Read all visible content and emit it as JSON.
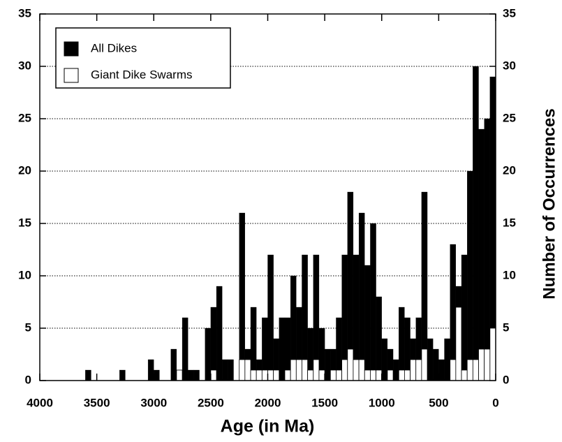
{
  "chart_data": {
    "type": "histogram",
    "xlabel": "Age (in Ma)",
    "ylabel": "Number of Occurrences",
    "bins": [
      4000,
      3950,
      3900,
      3850,
      3800,
      3750,
      3700,
      3650,
      3600,
      3550,
      3500,
      3450,
      3400,
      3350,
      3300,
      3250,
      3200,
      3150,
      3100,
      3050,
      3000,
      2950,
      2900,
      2850,
      2800,
      2750,
      2700,
      2650,
      2600,
      2550,
      2500,
      2450,
      2400,
      2350,
      2300,
      2250,
      2200,
      2150,
      2100,
      2050,
      2000,
      1950,
      1900,
      1850,
      1800,
      1750,
      1700,
      1650,
      1600,
      1550,
      1500,
      1450,
      1400,
      1350,
      1300,
      1250,
      1200,
      1150,
      1100,
      1050,
      1000,
      950,
      900,
      850,
      800,
      750,
      700,
      650,
      600,
      550,
      500,
      450,
      400,
      350,
      300,
      250,
      200,
      150,
      100,
      50,
      0
    ],
    "series": [
      {
        "name": "All Dikes",
        "color": "#000000",
        "values": [
          0,
          0,
          0,
          0,
          0,
          0,
          0,
          0,
          1,
          0,
          0,
          0,
          0,
          0,
          1,
          0,
          0,
          0,
          0,
          2,
          1,
          0,
          0,
          3,
          1,
          6,
          1,
          1,
          0,
          5,
          7,
          9,
          2,
          2,
          0,
          16,
          3,
          7,
          2,
          6,
          12,
          4,
          6,
          6,
          10,
          7,
          12,
          5,
          12,
          5,
          3,
          3,
          6,
          12,
          18,
          12,
          16,
          11,
          15,
          8,
          4,
          3,
          2,
          7,
          6,
          4,
          6,
          18,
          4,
          3,
          2,
          4,
          13,
          9,
          12,
          20,
          30,
          24,
          25,
          29
        ]
      },
      {
        "name": "Giant Dike Swarms",
        "color": "#ffffff",
        "values": [
          0,
          0,
          0,
          0,
          0,
          0,
          0,
          0,
          0,
          0,
          0,
          0,
          0,
          0,
          0,
          0,
          0,
          0,
          0,
          0,
          0,
          0,
          0,
          0,
          1,
          0,
          0,
          0,
          0,
          0,
          1,
          0,
          0,
          0,
          0,
          2,
          2,
          1,
          1,
          1,
          1,
          1,
          0,
          1,
          2,
          2,
          2,
          1,
          2,
          1,
          0,
          1,
          1,
          2,
          3,
          2,
          2,
          1,
          1,
          1,
          0,
          1,
          0,
          1,
          1,
          2,
          2,
          3,
          0,
          0,
          0,
          0,
          2,
          7,
          1,
          2,
          2,
          3,
          3,
          5
        ]
      }
    ],
    "xlim": [
      4000,
      0
    ],
    "xticks": [
      4000,
      3500,
      3000,
      2500,
      2000,
      1500,
      1000,
      500,
      0
    ],
    "ylim": [
      0,
      35
    ],
    "yticks": [
      0,
      5,
      10,
      15,
      20,
      25,
      30,
      35
    ],
    "y2lim": [
      0,
      35
    ],
    "y2ticks": [
      0,
      5,
      10,
      15,
      20,
      25,
      30,
      35
    ],
    "grid": true,
    "legend": "upper left"
  }
}
